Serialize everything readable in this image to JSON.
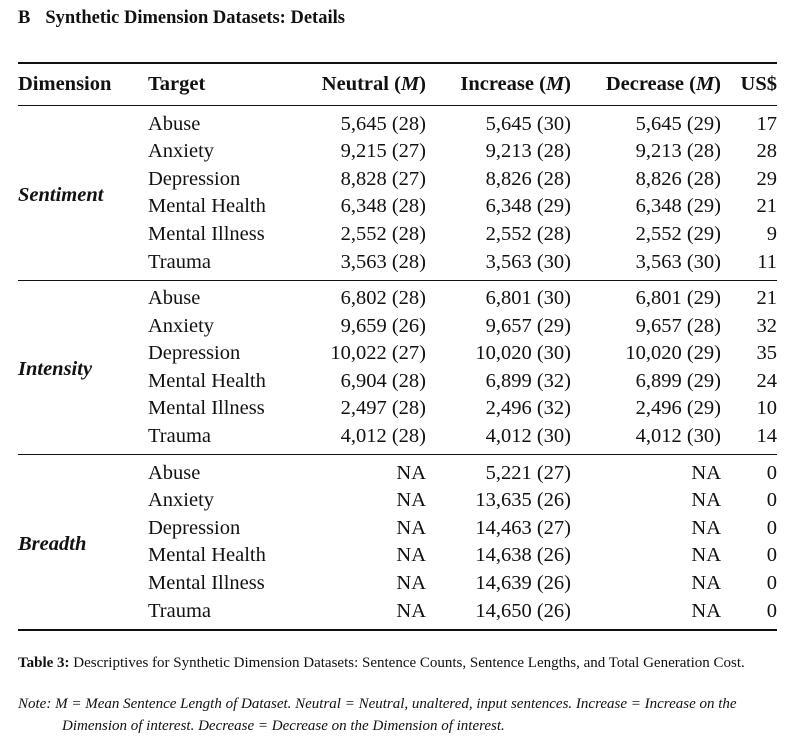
{
  "section": {
    "letter": "B",
    "title": "Synthetic Dimension Datasets: Details"
  },
  "table": {
    "headers": {
      "dimension": "Dimension",
      "target": "Target",
      "neutral": "Neutral",
      "increase": "Increase",
      "decrease": "Decrease",
      "m_open": "(",
      "m_symbol": "M",
      "m_close": ")",
      "usd": "US$"
    },
    "groups": [
      {
        "dimension": "Sentiment",
        "rows": [
          {
            "target": "Abuse",
            "neutral": "5,645 (28)",
            "increase": "5,645 (30)",
            "decrease": "5,645 (29)",
            "usd": "17"
          },
          {
            "target": "Anxiety",
            "neutral": "9,215 (27)",
            "increase": "9,213 (28)",
            "decrease": "9,213 (28)",
            "usd": "28"
          },
          {
            "target": "Depression",
            "neutral": "8,828 (27)",
            "increase": "8,826 (28)",
            "decrease": "8,826 (28)",
            "usd": "29"
          },
          {
            "target": "Mental Health",
            "neutral": "6,348 (28)",
            "increase": "6,348 (29)",
            "decrease": "6,348 (29)",
            "usd": "21"
          },
          {
            "target": "Mental Illness",
            "neutral": "2,552 (28)",
            "increase": "2,552 (28)",
            "decrease": "2,552 (29)",
            "usd": "9"
          },
          {
            "target": "Trauma",
            "neutral": "3,563 (28)",
            "increase": "3,563 (30)",
            "decrease": "3,563 (30)",
            "usd": "11"
          }
        ]
      },
      {
        "dimension": "Intensity",
        "rows": [
          {
            "target": "Abuse",
            "neutral": "6,802 (28)",
            "increase": "6,801 (30)",
            "decrease": "6,801 (29)",
            "usd": "21"
          },
          {
            "target": "Anxiety",
            "neutral": "9,659 (26)",
            "increase": "9,657 (29)",
            "decrease": "9,657 (28)",
            "usd": "32"
          },
          {
            "target": "Depression",
            "neutral": "10,022 (27)",
            "increase": "10,020 (30)",
            "decrease": "10,020 (29)",
            "usd": "35"
          },
          {
            "target": "Mental Health",
            "neutral": "6,904 (28)",
            "increase": "6,899 (32)",
            "decrease": "6,899 (29)",
            "usd": "24"
          },
          {
            "target": "Mental Illness",
            "neutral": "2,497 (28)",
            "increase": "2,496 (32)",
            "decrease": "2,496 (29)",
            "usd": "10"
          },
          {
            "target": "Trauma",
            "neutral": "4,012 (28)",
            "increase": "4,012 (30)",
            "decrease": "4,012 (30)",
            "usd": "14"
          }
        ]
      },
      {
        "dimension": "Breadth",
        "rows": [
          {
            "target": "Abuse",
            "neutral": "NA",
            "increase": "5,221 (27)",
            "decrease": "NA",
            "usd": "0"
          },
          {
            "target": "Anxiety",
            "neutral": "NA",
            "increase": "13,635 (26)",
            "decrease": "NA",
            "usd": "0"
          },
          {
            "target": "Depression",
            "neutral": "NA",
            "increase": "14,463 (27)",
            "decrease": "NA",
            "usd": "0"
          },
          {
            "target": "Mental Health",
            "neutral": "NA",
            "increase": "14,638 (26)",
            "decrease": "NA",
            "usd": "0"
          },
          {
            "target": "Mental Illness",
            "neutral": "NA",
            "increase": "14,639 (26)",
            "decrease": "NA",
            "usd": "0"
          },
          {
            "target": "Trauma",
            "neutral": "NA",
            "increase": "14,650 (26)",
            "decrease": "NA",
            "usd": "0"
          }
        ]
      }
    ]
  },
  "caption": {
    "label": "Table 3:",
    "text": "Descriptives for Synthetic Dimension Datasets: Sentence Counts, Sentence Lengths, and Total Generation Cost."
  },
  "note": {
    "label": "Note:",
    "text": "M = Mean Sentence Length of Dataset. Neutral = Neutral, unaltered, input sentences. Increase = Increase on the Dimension of interest. Decrease = Decrease on the Dimension of interest."
  }
}
